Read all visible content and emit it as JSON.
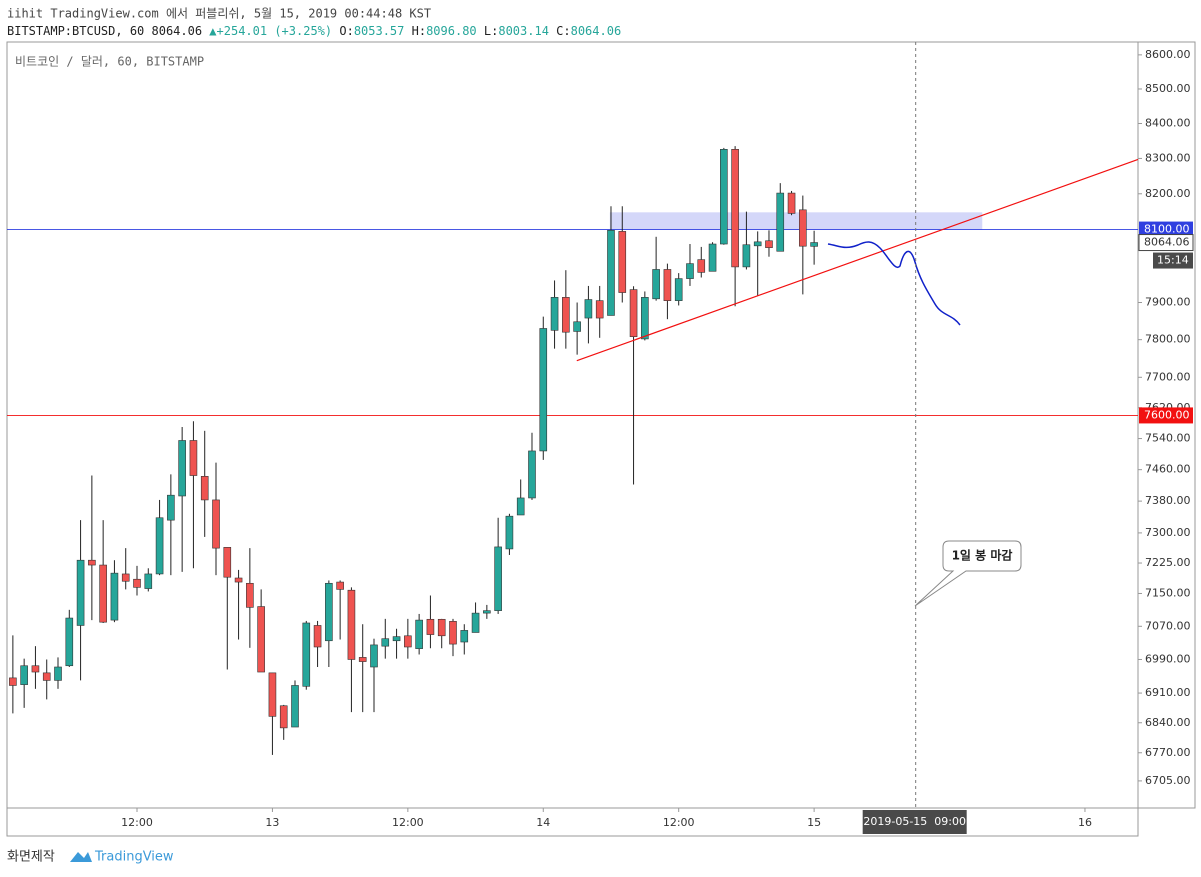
{
  "header": {
    "published": "iihit TradingView.com 에서 퍼블리쉬, 5월 15, 2019 00:44:48 KST",
    "symbol": "BITSTAMP:BTCUSD, 60 8064.06",
    "change": "+254.01 (+3.25%)",
    "ohlc": [
      {
        "key": "O:",
        "value": "8053.57"
      },
      {
        "key": "H:",
        "value": "8096.80"
      },
      {
        "key": "L:",
        "value": "8003.14"
      },
      {
        "key": "C:",
        "value": "8064.06"
      }
    ]
  },
  "chart_data": {
    "type": "candlestick",
    "title": "비트코인 / 달러, 60, BITSTAMP",
    "x": [
      1,
      2,
      3,
      4,
      5,
      6,
      7,
      8,
      9,
      10,
      11,
      12,
      13,
      14,
      15,
      16,
      17,
      18,
      19,
      20,
      21,
      22,
      23,
      24,
      25,
      26,
      27,
      28,
      29,
      30,
      31,
      32,
      33,
      34,
      35,
      36,
      37,
      38,
      39,
      40,
      41,
      42,
      43,
      44,
      45,
      46,
      47,
      48,
      49,
      50,
      51,
      52,
      53,
      54,
      55,
      56,
      57,
      58,
      59,
      60,
      61,
      62,
      63,
      64,
      65,
      66,
      67,
      68,
      69,
      70,
      71,
      72
    ],
    "open": [
      6946,
      6930,
      6975,
      6958,
      6940,
      6975,
      7072,
      7232,
      7220,
      7085,
      7198,
      7185,
      7162,
      7198,
      7332,
      7393,
      7535,
      7443,
      7383,
      7264,
      7188,
      7175,
      7118,
      6958,
      6880,
      6830,
      6926,
      7072,
      7035,
      7178,
      7158,
      6995,
      6972,
      7022,
      7035,
      7047,
      7016,
      7087,
      7087,
      7082,
      7032,
      7055,
      7102,
      7108,
      7260,
      7345,
      7388,
      7508,
      7825,
      7914,
      7822,
      7858,
      7905,
      7865,
      8095,
      7935,
      7802,
      7910,
      7990,
      7905,
      7965,
      8017,
      7985,
      8060,
      8326,
      7997,
      8055,
      8069,
      8040,
      8202,
      8155,
      8053.57
    ],
    "high": [
      7048,
      6992,
      7022,
      6990,
      6995,
      7110,
      7332,
      7445,
      7332,
      7232,
      7262,
      7218,
      7212,
      7383,
      7448,
      7570,
      7585,
      7560,
      7478,
      7264,
      7208,
      7262,
      7160,
      6958,
      6882,
      6940,
      7083,
      7083,
      7182,
      7182,
      7165,
      7075,
      7040,
      7088,
      7064,
      7088,
      7100,
      7145,
      7088,
      7088,
      7075,
      7128,
      7122,
      7338,
      7348,
      7435,
      7555,
      7862,
      7960,
      7988,
      7900,
      7945,
      7945,
      8165,
      8165,
      7944,
      7930,
      8080,
      8006,
      7980,
      8060,
      8052,
      8065,
      8330,
      8335,
      8150,
      8095,
      8098,
      8230,
      8208,
      8195,
      8096.8
    ],
    "low": [
      6862,
      6875,
      6920,
      6895,
      6920,
      6972,
      6940,
      7085,
      7078,
      7080,
      7160,
      7145,
      7155,
      7195,
      7195,
      7203,
      7212,
      7290,
      7195,
      6966,
      7038,
      7018,
      6960,
      6765,
      6800,
      6830,
      6918,
      6972,
      6972,
      7038,
      6865,
      6865,
      6865,
      6992,
      6992,
      6992,
      7002,
      7017,
      7017,
      6998,
      7002,
      7055,
      7088,
      7100,
      7245,
      7345,
      7383,
      7485,
      7776,
      7776,
      7760,
      7790,
      7805,
      7865,
      7900,
      7422,
      7798,
      7905,
      7855,
      7892,
      7945,
      7968,
      7985,
      8058,
      7890,
      7990,
      7918,
      8025,
      8040,
      8140,
      7922,
      8003.14
    ],
    "close": [
      6928,
      6975,
      6960,
      6940,
      6972,
      7090,
      7232,
      7220,
      7080,
      7200,
      7180,
      7165,
      7198,
      7338,
      7395,
      7535,
      7445,
      7383,
      7262,
      7190,
      7178,
      7116,
      6960,
      6855,
      6828,
      6928,
      7078,
      7020,
      7175,
      7160,
      6990,
      6985,
      7025,
      7040,
      7045,
      7020,
      7085,
      7050,
      7047,
      7027,
      7060,
      7102,
      7108,
      7265,
      7342,
      7388,
      7508,
      7830,
      7914,
      7820,
      7848,
      7908,
      7858,
      8098,
      7927,
      7808,
      7914,
      7990,
      7905,
      7965,
      8006,
      7982,
      8060,
      8326,
      7997,
      8058,
      8066,
      8050,
      8202,
      8145,
      8054,
      8064.06
    ],
    "up_color": "#26a69a",
    "down_color": "#ef5350",
    "xlim": [
      0.48,
      100.7
    ],
    "xticks": [
      {
        "value": 12,
        "label": "12:00"
      },
      {
        "value": 24,
        "label": "13"
      },
      {
        "value": 36,
        "label": "12:00"
      },
      {
        "value": 48,
        "label": "14"
      },
      {
        "value": 60,
        "label": "12:00"
      },
      {
        "value": 72,
        "label": "15"
      },
      {
        "value": 96,
        "label": "16"
      }
    ],
    "ylim": [
      6643,
      8638
    ],
    "log_scale": true,
    "yticks": [
      {
        "value": 8600,
        "label": "8600.00"
      },
      {
        "value": 8500,
        "label": "8500.00"
      },
      {
        "value": 8400,
        "label": "8400.00"
      },
      {
        "value": 8300,
        "label": "8300.00"
      },
      {
        "value": 8200,
        "label": "8200.00"
      },
      {
        "value": 7900,
        "label": "7900.00"
      },
      {
        "value": 7800,
        "label": "7800.00"
      },
      {
        "value": 7700,
        "label": "7700.00"
      },
      {
        "value": 7620,
        "label": "7620.00"
      },
      {
        "value": 7540,
        "label": "7540.00"
      },
      {
        "value": 7460,
        "label": "7460.00"
      },
      {
        "value": 7380,
        "label": "7380.00"
      },
      {
        "value": 7300,
        "label": "7300.00"
      },
      {
        "value": 7225,
        "label": "7225.00"
      },
      {
        "value": 7150,
        "label": "7150.00"
      },
      {
        "value": 7070,
        "label": "7070.00"
      },
      {
        "value": 6990,
        "label": "6990.00"
      },
      {
        "value": 6910,
        "label": "6910.00"
      },
      {
        "value": 6840,
        "label": "6840.00"
      },
      {
        "value": 6770,
        "label": "6770.00"
      },
      {
        "value": 6705,
        "label": "6705.00"
      }
    ],
    "hlines": [
      {
        "value": 8100,
        "label": "8100.00",
        "color": "#2f3fe0"
      },
      {
        "value": 7600,
        "label": "7600.00",
        "color": "#f21010"
      }
    ],
    "last_price": {
      "value": 8064.06,
      "label": "8064.06"
    },
    "countdown": "15:14",
    "zone": {
      "x": [
        53.9,
        86.9
      ],
      "y": [
        8100,
        8148
      ],
      "color": "#c9cdf7"
    },
    "trendline": {
      "x": [
        50.97,
        100.7
      ],
      "y": [
        7744,
        8297
      ],
      "color": "#f21010"
    },
    "crosshair": {
      "x": 81,
      "label": "2019-05-15  09:00"
    },
    "annotation": "1일 봉 마감"
  },
  "footer": {
    "made_by": "화면제작",
    "brand": "TradingView"
  }
}
